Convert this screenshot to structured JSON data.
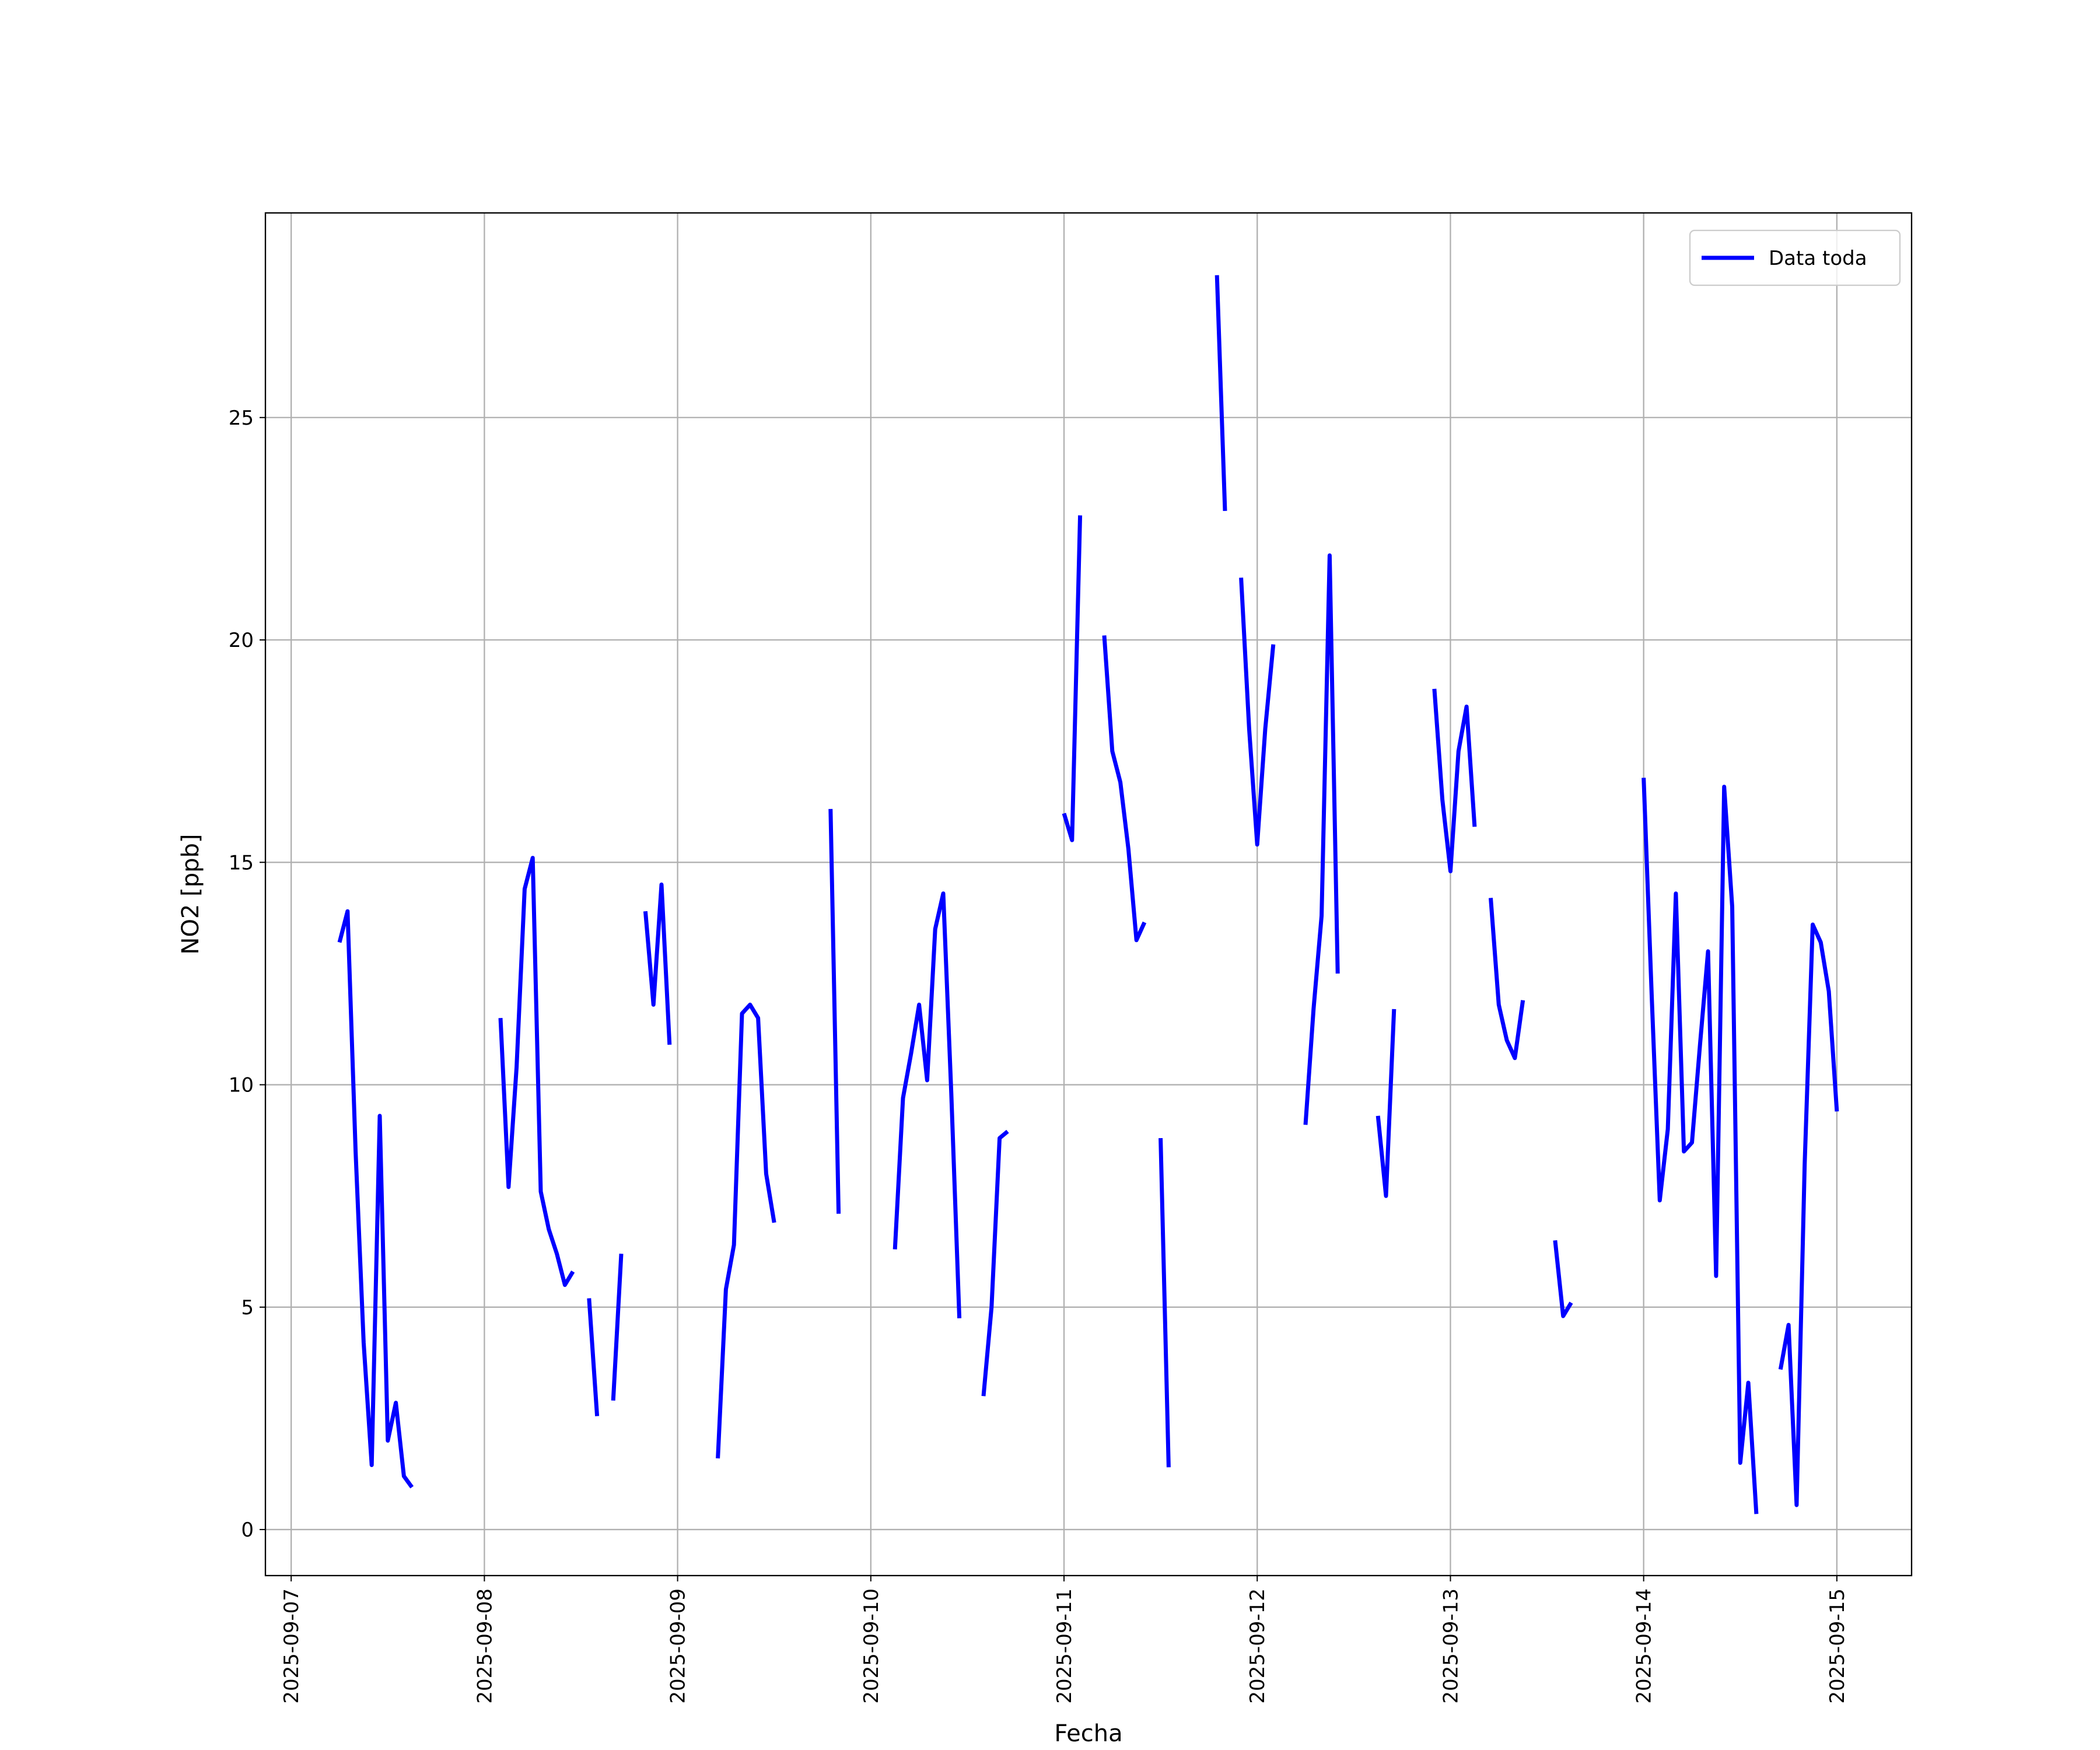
{
  "chart_data": {
    "type": "line",
    "title": null,
    "xlabel": "Fecha",
    "ylabel": "NO2 [ppb]",
    "x": [
      "2025-09-07 06:00",
      "2025-09-07 07:00",
      "2025-09-07 08:00",
      "2025-09-07 09:00",
      "2025-09-07 10:00",
      "2025-09-07 11:00",
      "2025-09-07 12:00",
      "2025-09-07 13:00",
      "2025-09-07 14:00",
      "2025-09-07 15:00",
      "2025-09-07 16:00",
      "2025-09-08 02:00",
      "2025-09-08 03:00",
      "2025-09-08 04:00",
      "2025-09-08 05:00",
      "2025-09-08 06:00",
      "2025-09-08 07:00",
      "2025-09-08 08:00",
      "2025-09-08 09:00",
      "2025-09-08 10:00",
      "2025-09-08 11:00",
      "2025-09-08 12:00",
      "2025-09-08 13:00",
      "2025-09-08 14:00",
      "2025-09-08 15:00",
      "2025-09-08 16:00",
      "2025-09-08 17:00",
      "2025-09-08 18:00",
      "2025-09-08 20:00",
      "2025-09-08 21:00",
      "2025-09-08 22:00",
      "2025-09-08 23:00",
      "2025-09-09 00:00",
      "2025-09-09 05:00",
      "2025-09-09 06:00",
      "2025-09-09 07:00",
      "2025-09-09 08:00",
      "2025-09-09 09:00",
      "2025-09-09 10:00",
      "2025-09-09 11:00",
      "2025-09-09 12:00",
      "2025-09-09 13:00",
      "2025-09-09 19:00",
      "2025-09-09 20:00",
      "2025-09-09 21:00",
      "2025-09-10 03:00",
      "2025-09-10 04:00",
      "2025-09-10 05:00",
      "2025-09-10 06:00",
      "2025-09-10 07:00",
      "2025-09-10 08:00",
      "2025-09-10 09:00",
      "2025-09-10 10:00",
      "2025-09-10 11:00",
      "2025-09-10 12:00",
      "2025-09-10 14:00",
      "2025-09-10 15:00",
      "2025-09-10 16:00",
      "2025-09-10 17:00",
      "2025-09-10 18:00",
      "2025-09-11 00:00",
      "2025-09-11 01:00",
      "2025-09-11 02:00",
      "2025-09-11 03:00",
      "2025-09-11 05:00",
      "2025-09-11 06:00",
      "2025-09-11 07:00",
      "2025-09-11 08:00",
      "2025-09-11 09:00",
      "2025-09-11 10:00",
      "2025-09-11 11:00",
      "2025-09-11 12:00",
      "2025-09-11 13:00",
      "2025-09-11 14:00",
      "2025-09-11 19:00",
      "2025-09-11 20:00",
      "2025-09-11 21:00",
      "2025-09-11 22:00",
      "2025-09-11 23:00",
      "2025-09-12 00:00",
      "2025-09-12 01:00",
      "2025-09-12 02:00",
      "2025-09-12 03:00",
      "2025-09-12 06:00",
      "2025-09-12 07:00",
      "2025-09-12 08:00",
      "2025-09-12 09:00",
      "2025-09-12 10:00",
      "2025-09-12 11:00",
      "2025-09-12 15:00",
      "2025-09-12 16:00",
      "2025-09-12 17:00",
      "2025-09-12 18:00",
      "2025-09-12 22:00",
      "2025-09-12 23:00",
      "2025-09-13 00:00",
      "2025-09-13 01:00",
      "2025-09-13 02:00",
      "2025-09-13 03:00",
      "2025-09-13 04:00",
      "2025-09-13 05:00",
      "2025-09-13 06:00",
      "2025-09-13 07:00",
      "2025-09-13 08:00",
      "2025-09-13 09:00",
      "2025-09-13 10:00",
      "2025-09-13 13:00",
      "2025-09-13 14:00",
      "2025-09-13 15:00",
      "2025-09-13 16:00",
      "2025-09-14 00:00",
      "2025-09-14 01:00",
      "2025-09-14 02:00",
      "2025-09-14 03:00",
      "2025-09-14 04:00",
      "2025-09-14 05:00",
      "2025-09-14 06:00",
      "2025-09-14 07:00",
      "2025-09-14 08:00",
      "2025-09-14 09:00",
      "2025-09-14 10:00",
      "2025-09-14 11:00",
      "2025-09-14 12:00",
      "2025-09-14 13:00",
      "2025-09-14 14:00",
      "2025-09-14 15:00",
      "2025-09-14 17:00",
      "2025-09-14 18:00",
      "2025-09-14 19:00",
      "2025-09-14 20:00",
      "2025-09-14 21:00",
      "2025-09-14 22:00",
      "2025-09-14 23:00",
      "2025-09-15 00:00"
    ],
    "series": [
      {
        "name": "Data toda",
        "color": "#0000ff",
        "values": [
          13.2,
          13.9,
          8.5,
          4.2,
          1.45,
          9.3,
          2.0,
          2.85,
          1.2,
          0.95,
          null,
          11.5,
          7.7,
          10.4,
          14.4,
          15.1,
          7.6,
          6.75,
          6.2,
          5.5,
          5.8,
          null,
          5.2,
          2.55,
          null,
          2.9,
          6.2,
          null,
          13.9,
          11.8,
          14.5,
          10.9,
          null,
          1.6,
          5.4,
          6.4,
          11.6,
          11.8,
          11.5,
          8.0,
          6.9,
          null,
          16.2,
          7.1,
          null,
          6.3,
          9.7,
          10.7,
          11.8,
          10.1,
          13.5,
          14.3,
          9.8,
          4.75,
          null,
          3.0,
          5.0,
          8.8,
          8.95,
          null,
          16.1,
          15.5,
          22.8,
          null,
          20.1,
          17.5,
          16.8,
          15.3,
          13.25,
          13.65,
          null,
          8.8,
          1.4,
          null,
          28.2,
          22.9,
          null,
          21.4,
          18.0,
          15.4,
          18.0,
          19.9,
          null,
          9.1,
          11.7,
          13.8,
          21.9,
          12.5,
          null,
          9.3,
          7.5,
          11.7,
          null,
          18.9,
          16.4,
          14.8,
          17.5,
          18.5,
          15.8,
          null,
          14.2,
          11.8,
          11.0,
          10.6,
          11.9,
          null,
          6.5,
          4.8,
          5.1,
          null,
          16.9,
          12.0,
          7.4,
          9.0,
          14.3,
          8.5,
          8.7,
          10.9,
          13.0,
          5.7,
          16.7,
          14.0,
          1.5,
          3.3,
          0.35,
          null,
          3.6,
          4.6,
          0.55,
          8.2,
          13.6,
          13.2,
          12.1,
          9.4
        ]
      }
    ],
    "xlim": [
      "2025-09-06 20:48",
      "2025-09-15 09:17"
    ],
    "xticks": [
      "2025-09-07",
      "2025-09-08",
      "2025-09-09",
      "2025-09-10",
      "2025-09-11",
      "2025-09-12",
      "2025-09-13",
      "2025-09-14",
      "2025-09-15"
    ],
    "ylim": [
      -1.035,
      29.6
    ],
    "yticks": [
      0,
      5,
      10,
      15,
      20,
      25
    ],
    "grid": true,
    "legend": "upper right"
  }
}
